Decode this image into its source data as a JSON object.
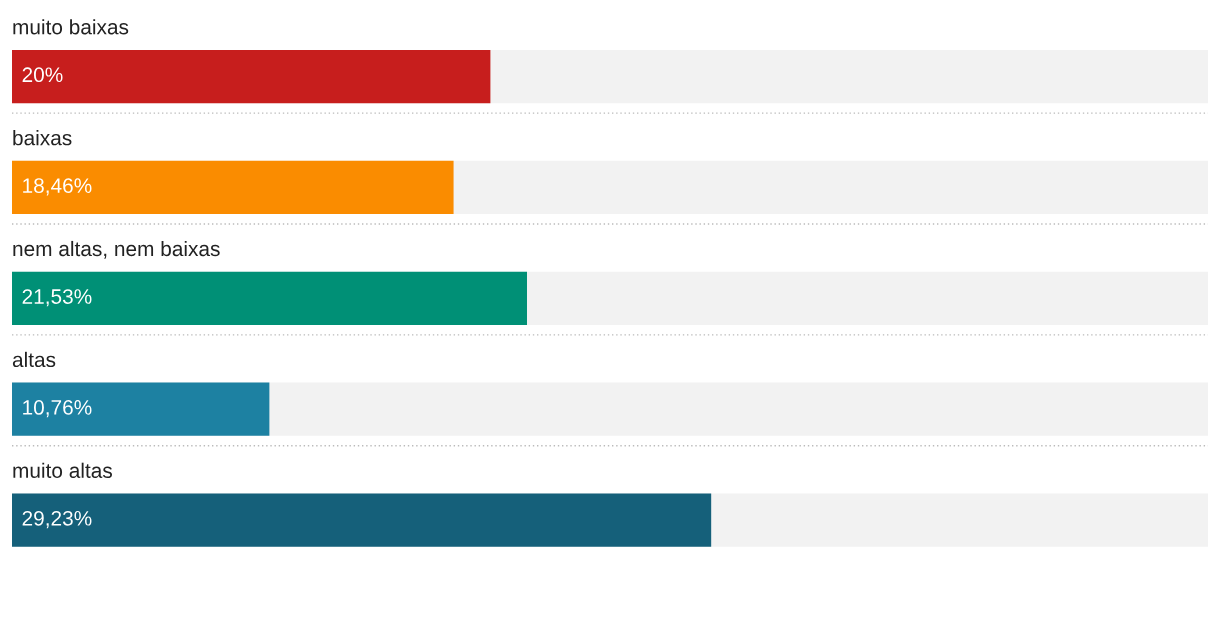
{
  "chart_data": {
    "type": "bar",
    "orientation": "horizontal",
    "categories": [
      "muito baixas",
      "baixas",
      "nem altas, nem baixas",
      "altas",
      "muito altas"
    ],
    "values": [
      20,
      18.46,
      21.53,
      10.76,
      29.23
    ],
    "colors": [
      "#c71e1d",
      "#fa8c00",
      "#009076",
      "#1d81a2",
      "#15607a"
    ],
    "value_labels": [
      "20%",
      "18,46%",
      "21,53%",
      "10,76%",
      "29,23%"
    ],
    "xlim": [
      0,
      50
    ]
  }
}
